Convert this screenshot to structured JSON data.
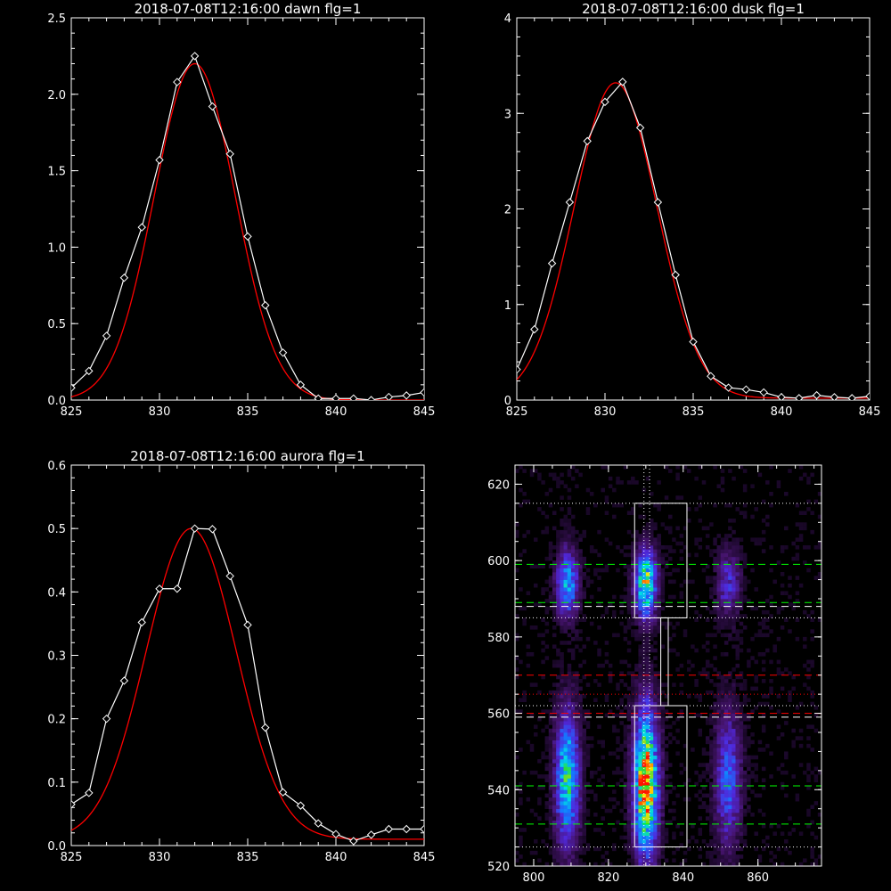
{
  "colors": {
    "background": "#000000",
    "foreground": "#ffffff",
    "fit": "#ff0000",
    "guide_green": "#00ff00",
    "guide_red": "#ff0000"
  },
  "chart_data": [
    {
      "type": "line",
      "title": "2018-07-08T12:16:00 dawn flg=1",
      "xlim": [
        825,
        845
      ],
      "ylim": [
        0,
        2.5
      ],
      "xticks": [
        "825",
        "830",
        "835",
        "840",
        "845"
      ],
      "yticks": [
        "0.0",
        "0.5",
        "1.0",
        "1.5",
        "2.0",
        "2.5"
      ],
      "ytick_values": [
        0,
        0.5,
        1.0,
        1.5,
        2.0,
        2.5
      ],
      "grid": false,
      "series": [
        {
          "style": "data-diamonds",
          "color": "#ffffff",
          "x": [
            825,
            826,
            827,
            828,
            829,
            830,
            831,
            832,
            833,
            834,
            835,
            836,
            837,
            838,
            839,
            840,
            841,
            842,
            843,
            844,
            845
          ],
          "y": [
            0.08,
            0.19,
            0.42,
            0.8,
            1.13,
            1.57,
            2.08,
            2.25,
            1.92,
            1.61,
            1.07,
            0.62,
            0.31,
            0.1,
            0.01,
            0.01,
            0.01,
            0.0,
            0.02,
            0.03,
            0.05
          ]
        },
        {
          "style": "gaussian-fit",
          "color": "#ff0000",
          "amplitude": 2.2,
          "center": 832.0,
          "sigma": 2.3,
          "offset": 0.0
        }
      ]
    },
    {
      "type": "line",
      "title": "2018-07-08T12:16:00 dusk flg=1",
      "xlim": [
        825,
        845
      ],
      "ylim": [
        0,
        4
      ],
      "xticks": [
        "825",
        "830",
        "835",
        "840",
        "845"
      ],
      "yticks": [
        "0",
        "1",
        "2",
        "3",
        "4"
      ],
      "ytick_values": [
        0,
        1,
        2,
        3,
        4
      ],
      "grid": false,
      "series": [
        {
          "style": "data-diamonds",
          "color": "#ffffff",
          "x": [
            825,
            826,
            827,
            828,
            829,
            830,
            831,
            832,
            833,
            834,
            835,
            836,
            837,
            838,
            839,
            840,
            841,
            842,
            843,
            844,
            845
          ],
          "y": [
            0.32,
            0.74,
            1.43,
            2.07,
            2.71,
            3.12,
            3.33,
            2.85,
            2.07,
            1.31,
            0.61,
            0.25,
            0.13,
            0.11,
            0.08,
            0.03,
            0.02,
            0.05,
            0.03,
            0.02,
            0.04
          ]
        },
        {
          "style": "gaussian-fit",
          "color": "#ff0000",
          "amplitude": 3.3,
          "center": 830.6,
          "sigma": 2.35,
          "offset": 0.02
        }
      ]
    },
    {
      "type": "line",
      "title": "2018-07-08T12:16:00 aurora flg=1",
      "xlim": [
        825,
        845
      ],
      "ylim": [
        0,
        0.6
      ],
      "xticks": [
        "825",
        "830",
        "835",
        "840",
        "845"
      ],
      "yticks": [
        "0.0",
        "0.1",
        "0.2",
        "0.3",
        "0.4",
        "0.5",
        "0.6"
      ],
      "ytick_values": [
        0,
        0.1,
        0.2,
        0.3,
        0.4,
        0.5,
        0.6
      ],
      "grid": false,
      "series": [
        {
          "style": "data-diamonds",
          "color": "#ffffff",
          "x": [
            825,
            826,
            827,
            828,
            829,
            830,
            831,
            832,
            833,
            834,
            835,
            836,
            837,
            838,
            839,
            840,
            841,
            842,
            843,
            844,
            845
          ],
          "y": [
            0.065,
            0.083,
            0.2,
            0.26,
            0.352,
            0.405,
            0.405,
            0.5,
            0.499,
            0.425,
            0.348,
            0.186,
            0.084,
            0.063,
            0.035,
            0.018,
            0.007,
            0.017,
            0.026,
            0.026,
            0.026
          ]
        },
        {
          "style": "gaussian-fit",
          "color": "#ff0000",
          "amplitude": 0.49,
          "center": 831.8,
          "sigma": 2.55,
          "offset": 0.01
        }
      ]
    },
    {
      "type": "heatmap",
      "title": "",
      "xlim": [
        795,
        877
      ],
      "ylim": [
        520,
        625
      ],
      "xticks": [
        "800",
        "820",
        "840",
        "860"
      ],
      "xtick_values": [
        800,
        820,
        840,
        860
      ],
      "yticks": [
        "520",
        "540",
        "560",
        "580",
        "600",
        "620"
      ],
      "ytick_values": [
        520,
        540,
        560,
        580,
        600,
        620
      ],
      "colormap": "black-purple-blue-cyan-green-yellow-red",
      "emission_blobs": [
        {
          "x": 809,
          "y": 594,
          "sx": 2.0,
          "sy": 6,
          "peak": 0.55
        },
        {
          "x": 809,
          "y": 543,
          "sx": 2.2,
          "sy": 12,
          "peak": 0.65
        },
        {
          "x": 830,
          "y": 594,
          "sx": 2.0,
          "sy": 6,
          "peak": 0.75
        },
        {
          "x": 830,
          "y": 542,
          "sx": 2.2,
          "sy": 13,
          "peak": 1.0
        },
        {
          "x": 852,
          "y": 594,
          "sx": 2.2,
          "sy": 6,
          "peak": 0.3
        },
        {
          "x": 852,
          "y": 543,
          "sx": 2.4,
          "sy": 12,
          "peak": 0.4
        }
      ],
      "boxes": [
        {
          "x0": 827,
          "x1": 841,
          "y0": 585,
          "y1": 615
        },
        {
          "x0": 827,
          "x1": 841,
          "y0": 525,
          "y1": 562
        },
        {
          "x0": 834,
          "x1": 836,
          "y0": 562,
          "y1": 585
        }
      ],
      "hlines": [
        {
          "y": 615,
          "color": "#ffffff",
          "style": "dotted"
        },
        {
          "y": 599,
          "color": "#00ff00",
          "style": "dashed"
        },
        {
          "y": 589,
          "color": "#00ff00",
          "style": "dashed"
        },
        {
          "y": 588,
          "color": "#ffffff",
          "style": "dashed"
        },
        {
          "y": 585,
          "color": "#ffffff",
          "style": "dotted"
        },
        {
          "y": 570,
          "color": "#ff0000",
          "style": "dashed"
        },
        {
          "y": 565,
          "color": "#ff0000",
          "style": "dotted"
        },
        {
          "y": 562,
          "color": "#ffffff",
          "style": "dotted"
        },
        {
          "y": 560,
          "color": "#ff0000",
          "style": "dashed"
        },
        {
          "y": 559,
          "color": "#ffffff",
          "style": "dashed"
        },
        {
          "y": 541,
          "color": "#00ff00",
          "style": "dashed"
        },
        {
          "y": 531,
          "color": "#00ff00",
          "style": "dashed"
        },
        {
          "y": 525,
          "color": "#ffffff",
          "style": "dotted"
        }
      ],
      "vlines": [
        {
          "x": 829.5,
          "color": "#ffffff",
          "style": "dotted"
        },
        {
          "x": 831.0,
          "color": "#ffffff",
          "style": "dotted"
        }
      ]
    }
  ]
}
